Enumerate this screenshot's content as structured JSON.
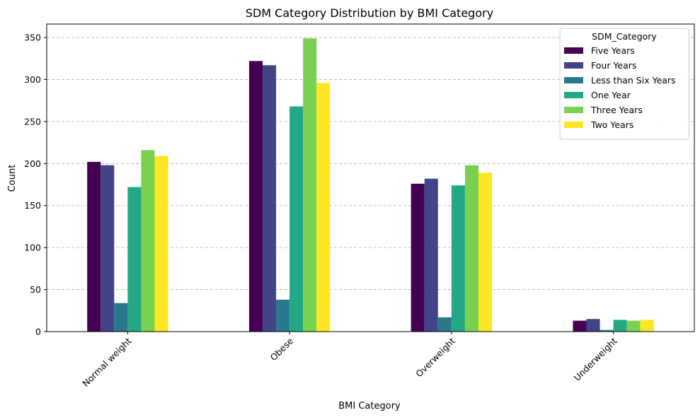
{
  "chart_data": {
    "type": "bar",
    "title": "SDM Category Distribution by BMI Category",
    "xlabel": "BMI Category",
    "ylabel": "Count",
    "ylim": [
      0,
      366
    ],
    "yticks": [
      0,
      50,
      100,
      150,
      200,
      250,
      300,
      350
    ],
    "grid": "y-dashed",
    "legend": {
      "title": "SDM_Category",
      "placement": "top-right"
    },
    "categories": [
      "Normal weight",
      "Obese",
      "Overweight",
      "Underweight"
    ],
    "series": [
      {
        "name": "Five Years",
        "color": "#440154",
        "values": [
          202,
          322,
          176,
          13
        ]
      },
      {
        "name": "Four Years",
        "color": "#414487",
        "values": [
          198,
          317,
          182,
          15
        ]
      },
      {
        "name": "Less than Six Years",
        "color": "#2a788e",
        "values": [
          34,
          38,
          17,
          2
        ]
      },
      {
        "name": "One Year",
        "color": "#22a884",
        "values": [
          172,
          268,
          174,
          14
        ]
      },
      {
        "name": "Three Years",
        "color": "#7ad151",
        "values": [
          216,
          349,
          198,
          13
        ]
      },
      {
        "name": "Two Years",
        "color": "#fde725",
        "values": [
          209,
          296,
          189,
          14
        ]
      }
    ]
  }
}
